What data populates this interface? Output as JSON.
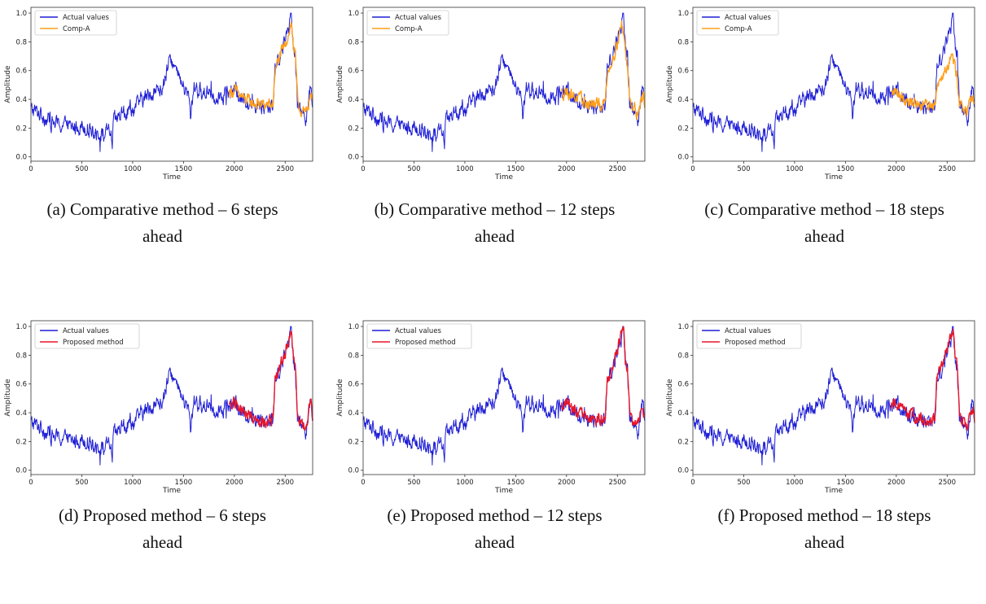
{
  "figure": {
    "colors": {
      "actual": "#1f1fd6",
      "comparative": "#ff9f1a",
      "proposed": "#e8162a",
      "axis": "#333333"
    },
    "x_ticks": [
      "0",
      "500",
      "1000",
      "1500",
      "2000",
      "2500"
    ],
    "y_ticks": [
      "0.0",
      "0.2",
      "0.4",
      "0.6",
      "0.8",
      "1.0"
    ]
  },
  "panels": [
    {
      "caption_line1": "(a) Comparative method – 6 steps",
      "caption_line2": "ahead",
      "legend_actual": "Actual values",
      "legend_pred": "Comp-A",
      "xlabel": "Time",
      "ylabel": "Amplitude"
    },
    {
      "caption_line1": "(b) Comparative method – 12 steps",
      "caption_line2": "ahead",
      "legend_actual": "Actual values",
      "legend_pred": "Comp-A",
      "xlabel": "Time",
      "ylabel": "Amplitude"
    },
    {
      "caption_line1": "(c) Comparative method – 18 steps",
      "caption_line2": "ahead",
      "legend_actual": "Actual values",
      "legend_pred": "Comp-A",
      "xlabel": "Time",
      "ylabel": "Amplitude"
    },
    {
      "caption_line1": "(d) Proposed method – 6 steps",
      "caption_line2": "ahead",
      "legend_actual": "Actual values",
      "legend_pred": "Proposed method",
      "xlabel": "Time",
      "ylabel": "Amplitude"
    },
    {
      "caption_line1": "(e) Proposed method – 12 steps",
      "caption_line2": "ahead",
      "legend_actual": "Actual values",
      "legend_pred": "Proposed method",
      "xlabel": "Time",
      "ylabel": "Amplitude"
    },
    {
      "caption_line1": "(f) Proposed method – 18 steps",
      "caption_line2": "ahead",
      "legend_actual": "Actual values",
      "legend_pred": "Proposed method",
      "xlabel": "Time",
      "ylabel": "Amplitude"
    }
  ],
  "chart_data": [
    {
      "type": "line",
      "xlabel": "Time",
      "ylabel": "Amplitude",
      "xlim": [
        0,
        2770
      ],
      "ylim": [
        -0.03,
        1.04
      ],
      "legend": "top-left",
      "series": [
        {
          "name": "Actual values",
          "color": "#1f1fd6",
          "x": [
            0,
            100,
            200,
            300,
            400,
            500,
            600,
            700,
            790,
            800,
            810,
            900,
            1000,
            1100,
            1200,
            1300,
            1350,
            1380,
            1400,
            1450,
            1500,
            1550,
            1570,
            1600,
            1650,
            1700,
            1750,
            1800,
            1900,
            2000,
            2100,
            2200,
            2300,
            2380,
            2400,
            2450,
            2500,
            2530,
            2560,
            2580,
            2600,
            2620,
            2650,
            2700,
            2750,
            2770
          ],
          "y": [
            0.33,
            0.3,
            0.24,
            0.22,
            0.2,
            0.22,
            0.19,
            0.15,
            0.18,
            0.01,
            0.24,
            0.3,
            0.33,
            0.4,
            0.45,
            0.48,
            0.62,
            0.7,
            0.64,
            0.55,
            0.48,
            0.42,
            0.27,
            0.5,
            0.46,
            0.43,
            0.48,
            0.42,
            0.44,
            0.46,
            0.4,
            0.36,
            0.35,
            0.35,
            0.62,
            0.72,
            0.8,
            0.9,
            1.0,
            0.78,
            0.75,
            0.38,
            0.32,
            0.28,
            0.47,
            0.38
          ]
        },
        {
          "name": "Comp-A",
          "color": "#ff9f1a",
          "x": [
            1950,
            2000,
            2100,
            2200,
            2300,
            2380,
            2400,
            2450,
            2500,
            2540,
            2560,
            2580,
            2600,
            2620,
            2650,
            2700,
            2750,
            2770
          ],
          "y": [
            0.45,
            0.46,
            0.4,
            0.37,
            0.36,
            0.36,
            0.6,
            0.7,
            0.78,
            0.88,
            0.93,
            0.78,
            0.7,
            0.4,
            0.33,
            0.29,
            0.44,
            0.37
          ]
        }
      ]
    },
    {
      "type": "line",
      "xlabel": "Time",
      "ylabel": "Amplitude",
      "xlim": [
        0,
        2770
      ],
      "ylim": [
        -0.03,
        1.04
      ],
      "legend": "top-left",
      "series": [
        {
          "name": "Actual values",
          "color": "#1f1fd6",
          "x": [
            0,
            100,
            200,
            300,
            400,
            500,
            600,
            700,
            790,
            800,
            810,
            900,
            1000,
            1100,
            1200,
            1300,
            1350,
            1380,
            1400,
            1450,
            1500,
            1550,
            1570,
            1600,
            1650,
            1700,
            1750,
            1800,
            1900,
            2000,
            2100,
            2200,
            2300,
            2380,
            2400,
            2450,
            2500,
            2530,
            2560,
            2580,
            2600,
            2620,
            2650,
            2700,
            2750,
            2770
          ],
          "y": [
            0.33,
            0.3,
            0.24,
            0.22,
            0.2,
            0.22,
            0.19,
            0.15,
            0.18,
            0.01,
            0.24,
            0.3,
            0.33,
            0.4,
            0.45,
            0.48,
            0.62,
            0.7,
            0.64,
            0.55,
            0.48,
            0.42,
            0.27,
            0.5,
            0.46,
            0.43,
            0.48,
            0.42,
            0.44,
            0.46,
            0.4,
            0.36,
            0.35,
            0.35,
            0.62,
            0.72,
            0.8,
            0.9,
            1.0,
            0.78,
            0.75,
            0.38,
            0.32,
            0.28,
            0.47,
            0.38
          ]
        },
        {
          "name": "Comp-A",
          "color": "#ff9f1a",
          "x": [
            1950,
            2000,
            2100,
            2200,
            2300,
            2380,
            2400,
            2450,
            2500,
            2540,
            2560,
            2580,
            2600,
            2620,
            2650,
            2700,
            2750,
            2770
          ],
          "y": [
            0.44,
            0.46,
            0.41,
            0.37,
            0.36,
            0.37,
            0.58,
            0.68,
            0.8,
            0.92,
            0.88,
            0.72,
            0.6,
            0.44,
            0.35,
            0.31,
            0.43,
            0.38
          ]
        }
      ]
    },
    {
      "type": "line",
      "xlabel": "Time",
      "ylabel": "Amplitude",
      "xlim": [
        0,
        2770
      ],
      "ylim": [
        -0.03,
        1.04
      ],
      "legend": "top-left",
      "series": [
        {
          "name": "Actual values",
          "color": "#1f1fd6",
          "x": [
            0,
            100,
            200,
            300,
            400,
            500,
            600,
            700,
            790,
            800,
            810,
            900,
            1000,
            1100,
            1200,
            1300,
            1350,
            1380,
            1400,
            1450,
            1500,
            1550,
            1570,
            1600,
            1650,
            1700,
            1750,
            1800,
            1900,
            2000,
            2100,
            2200,
            2300,
            2380,
            2400,
            2450,
            2500,
            2530,
            2560,
            2580,
            2600,
            2620,
            2650,
            2700,
            2750,
            2770
          ],
          "y": [
            0.33,
            0.3,
            0.24,
            0.22,
            0.2,
            0.22,
            0.19,
            0.15,
            0.18,
            0.01,
            0.24,
            0.3,
            0.33,
            0.4,
            0.45,
            0.48,
            0.62,
            0.7,
            0.64,
            0.55,
            0.48,
            0.42,
            0.27,
            0.5,
            0.46,
            0.43,
            0.48,
            0.42,
            0.44,
            0.46,
            0.4,
            0.36,
            0.35,
            0.35,
            0.62,
            0.72,
            0.8,
            0.9,
            1.0,
            0.78,
            0.75,
            0.38,
            0.32,
            0.28,
            0.47,
            0.38
          ]
        },
        {
          "name": "Comp-A",
          "color": "#ff9f1a",
          "x": [
            1950,
            2000,
            2100,
            2200,
            2300,
            2380,
            2400,
            2450,
            2500,
            2540,
            2560,
            2580,
            2600,
            2620,
            2650,
            2700,
            2750,
            2770
          ],
          "y": [
            0.44,
            0.45,
            0.4,
            0.37,
            0.36,
            0.37,
            0.5,
            0.58,
            0.64,
            0.7,
            0.68,
            0.62,
            0.55,
            0.4,
            0.34,
            0.31,
            0.42,
            0.37
          ]
        }
      ]
    },
    {
      "type": "line",
      "xlabel": "Time",
      "ylabel": "Amplitude",
      "xlim": [
        0,
        2770
      ],
      "ylim": [
        -0.03,
        1.04
      ],
      "legend": "top-left",
      "series": [
        {
          "name": "Actual values",
          "color": "#1f1fd6",
          "x": [
            0,
            100,
            200,
            300,
            400,
            500,
            600,
            700,
            790,
            800,
            810,
            900,
            1000,
            1100,
            1200,
            1300,
            1350,
            1380,
            1400,
            1450,
            1500,
            1550,
            1570,
            1600,
            1650,
            1700,
            1750,
            1800,
            1900,
            2000,
            2100,
            2200,
            2300,
            2380,
            2400,
            2450,
            2500,
            2530,
            2560,
            2580,
            2600,
            2620,
            2650,
            2700,
            2750,
            2770
          ],
          "y": [
            0.33,
            0.3,
            0.24,
            0.22,
            0.2,
            0.22,
            0.19,
            0.15,
            0.18,
            0.01,
            0.24,
            0.3,
            0.33,
            0.4,
            0.45,
            0.48,
            0.62,
            0.7,
            0.64,
            0.55,
            0.48,
            0.42,
            0.27,
            0.5,
            0.46,
            0.43,
            0.48,
            0.42,
            0.44,
            0.46,
            0.4,
            0.36,
            0.35,
            0.35,
            0.62,
            0.72,
            0.8,
            0.9,
            1.0,
            0.78,
            0.75,
            0.38,
            0.32,
            0.28,
            0.47,
            0.38
          ]
        },
        {
          "name": "Proposed method",
          "color": "#e8162a",
          "x": [
            1950,
            2000,
            2100,
            2200,
            2300,
            2380,
            2400,
            2450,
            2500,
            2530,
            2560,
            2580,
            2600,
            2620,
            2650,
            2700,
            2750,
            2770
          ],
          "y": [
            0.45,
            0.47,
            0.4,
            0.36,
            0.35,
            0.35,
            0.62,
            0.72,
            0.8,
            0.9,
            0.98,
            0.76,
            0.72,
            0.38,
            0.33,
            0.29,
            0.46,
            0.38
          ]
        }
      ]
    },
    {
      "type": "line",
      "xlabel": "Time",
      "ylabel": "Amplitude",
      "xlim": [
        0,
        2770
      ],
      "ylim": [
        -0.03,
        1.04
      ],
      "legend": "top-left",
      "series": [
        {
          "name": "Actual values",
          "color": "#1f1fd6",
          "x": [
            0,
            100,
            200,
            300,
            400,
            500,
            600,
            700,
            790,
            800,
            810,
            900,
            1000,
            1100,
            1200,
            1300,
            1350,
            1380,
            1400,
            1450,
            1500,
            1550,
            1570,
            1600,
            1650,
            1700,
            1750,
            1800,
            1900,
            2000,
            2100,
            2200,
            2300,
            2380,
            2400,
            2450,
            2500,
            2530,
            2560,
            2580,
            2600,
            2620,
            2650,
            2700,
            2750,
            2770
          ],
          "y": [
            0.33,
            0.3,
            0.24,
            0.22,
            0.2,
            0.22,
            0.19,
            0.15,
            0.18,
            0.01,
            0.24,
            0.3,
            0.33,
            0.4,
            0.45,
            0.48,
            0.62,
            0.7,
            0.64,
            0.55,
            0.48,
            0.42,
            0.27,
            0.5,
            0.46,
            0.43,
            0.48,
            0.42,
            0.44,
            0.46,
            0.4,
            0.36,
            0.35,
            0.35,
            0.62,
            0.72,
            0.8,
            0.9,
            1.0,
            0.78,
            0.75,
            0.38,
            0.32,
            0.28,
            0.47,
            0.38
          ]
        },
        {
          "name": "Proposed method",
          "color": "#e8162a",
          "x": [
            1950,
            2000,
            2100,
            2200,
            2300,
            2380,
            2400,
            2450,
            2500,
            2530,
            2560,
            2580,
            2600,
            2620,
            2650,
            2700,
            2750,
            2770
          ],
          "y": [
            0.45,
            0.47,
            0.4,
            0.36,
            0.35,
            0.36,
            0.6,
            0.72,
            0.82,
            0.92,
            1.0,
            0.74,
            0.7,
            0.4,
            0.33,
            0.3,
            0.45,
            0.38
          ]
        }
      ]
    },
    {
      "type": "line",
      "xlabel": "Time",
      "ylabel": "Amplitude",
      "xlim": [
        0,
        2770
      ],
      "ylim": [
        -0.03,
        1.04
      ],
      "legend": "top-left",
      "series": [
        {
          "name": "Actual values",
          "color": "#1f1fd6",
          "x": [
            0,
            100,
            200,
            300,
            400,
            500,
            600,
            700,
            790,
            800,
            810,
            900,
            1000,
            1100,
            1200,
            1300,
            1350,
            1380,
            1400,
            1450,
            1500,
            1550,
            1570,
            1600,
            1650,
            1700,
            1750,
            1800,
            1900,
            2000,
            2100,
            2200,
            2300,
            2380,
            2400,
            2450,
            2500,
            2530,
            2560,
            2580,
            2600,
            2620,
            2650,
            2700,
            2750,
            2770
          ],
          "y": [
            0.33,
            0.3,
            0.24,
            0.22,
            0.2,
            0.22,
            0.19,
            0.15,
            0.18,
            0.01,
            0.24,
            0.3,
            0.33,
            0.4,
            0.45,
            0.48,
            0.62,
            0.7,
            0.64,
            0.55,
            0.48,
            0.42,
            0.27,
            0.5,
            0.46,
            0.43,
            0.48,
            0.42,
            0.44,
            0.46,
            0.4,
            0.36,
            0.35,
            0.35,
            0.62,
            0.72,
            0.8,
            0.9,
            1.0,
            0.78,
            0.75,
            0.38,
            0.32,
            0.28,
            0.47,
            0.38
          ]
        },
        {
          "name": "Proposed method",
          "color": "#e8162a",
          "x": [
            1950,
            2000,
            2100,
            2200,
            2300,
            2380,
            2400,
            2450,
            2500,
            2530,
            2560,
            2580,
            2600,
            2620,
            2650,
            2700,
            2750,
            2770
          ],
          "y": [
            0.45,
            0.47,
            0.4,
            0.36,
            0.35,
            0.36,
            0.63,
            0.74,
            0.82,
            0.92,
            1.0,
            0.76,
            0.71,
            0.39,
            0.34,
            0.3,
            0.45,
            0.37
          ]
        }
      ]
    }
  ]
}
